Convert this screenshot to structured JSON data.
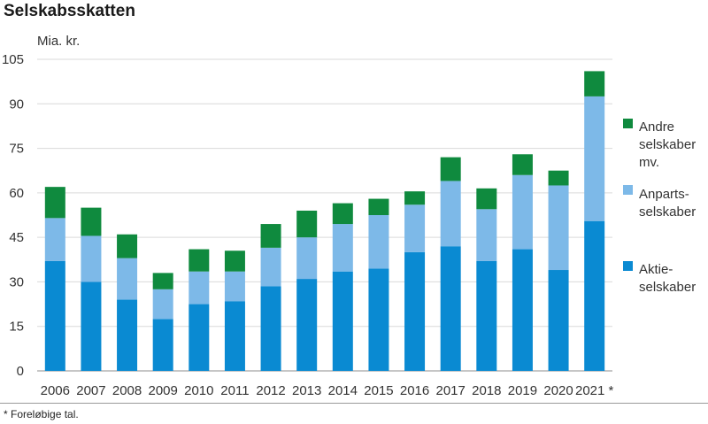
{
  "title": "Selskabsskatten",
  "unit_label": "Mia. kr.",
  "footnote": "* Foreløbige tal.",
  "chart_data": {
    "type": "bar",
    "stacked": true,
    "title": "Selskabsskatten",
    "ylabel": "Mia. kr.",
    "xlabel": "",
    "ylim": [
      0,
      105
    ],
    "yticks": [
      0,
      15,
      30,
      45,
      60,
      75,
      90,
      105
    ],
    "grid": true,
    "legend_position": "right",
    "categories": [
      "2006",
      "2007",
      "2008",
      "2009",
      "2010",
      "2011",
      "2012",
      "2013",
      "2014",
      "2015",
      "2016",
      "2017",
      "2018",
      "2019",
      "2020",
      "2021 *"
    ],
    "series": [
      {
        "name": "Aktie-\nselskaber",
        "color": "#0a8ad2",
        "values": [
          37,
          30,
          24,
          17.5,
          22.5,
          23.5,
          28.5,
          31,
          33.5,
          34.5,
          40,
          42,
          37,
          41,
          34,
          50.5
        ]
      },
      {
        "name": "Anparts-\nselskaber",
        "color": "#7db9e8",
        "values": [
          14.5,
          15.5,
          14,
          10,
          11,
          10,
          13,
          14,
          16,
          18,
          16,
          22,
          17.5,
          25,
          28.5,
          42
        ]
      },
      {
        "name": "Andre\nselskaber\nmv.",
        "color": "#0f8a3e",
        "values": [
          10.5,
          9.5,
          8,
          5.5,
          7.5,
          7,
          8,
          9,
          7,
          5.5,
          4.5,
          8,
          7,
          7,
          5,
          8.5
        ]
      }
    ]
  }
}
